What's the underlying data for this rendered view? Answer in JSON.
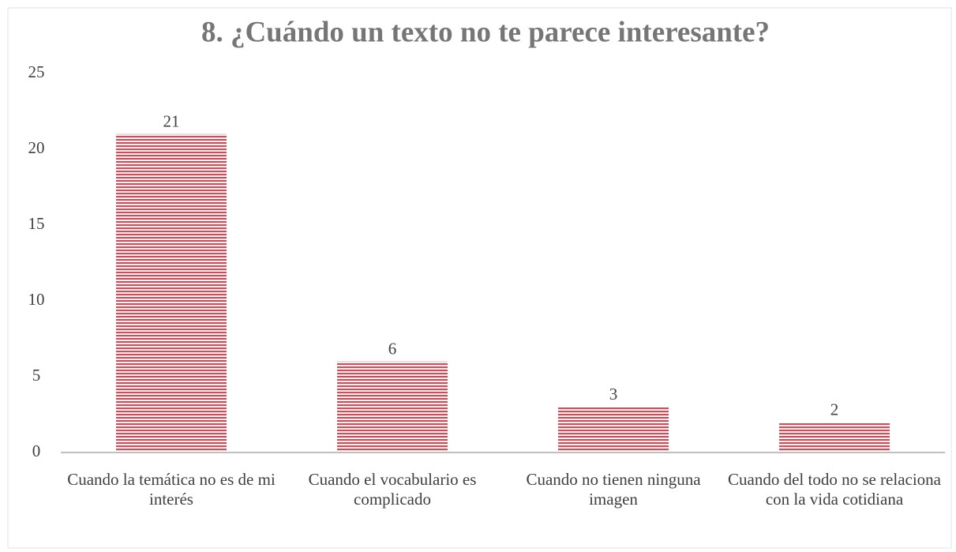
{
  "chart_data": {
    "type": "bar",
    "title": "8. ¿Cuándo un texto no te parece interesante?",
    "categories": [
      "Cuando la temática no es de mi interés",
      "Cuando el vocabulario es complicado",
      "Cuando no tienen ninguna imagen",
      "Cuando del todo no se relaciona con la vida cotidiana"
    ],
    "values": [
      21,
      6,
      3,
      2
    ],
    "color": "#c9505a",
    "ylim": [
      0,
      25
    ],
    "yticks": [
      0,
      5,
      10,
      15,
      20,
      25
    ],
    "grid": false
  }
}
